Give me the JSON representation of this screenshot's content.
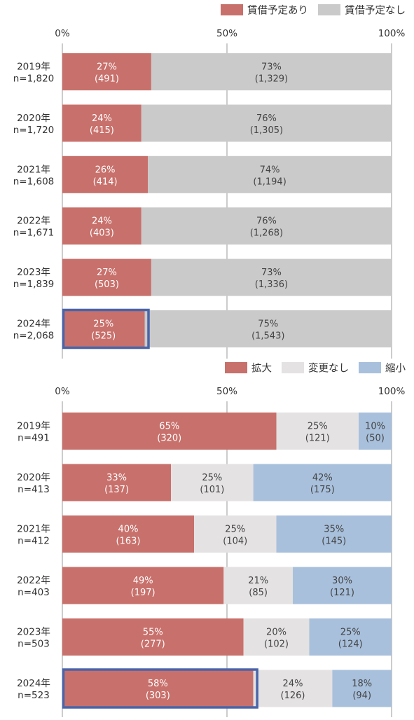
{
  "chart_data": [
    {
      "type": "bar",
      "orientation": "horizontal",
      "stacked": true,
      "percent": true,
      "categories": [
        "2019年\nn=1,820",
        "2020年\nn=1,720",
        "2021年\nn=1,608",
        "2022年\nn=1,671",
        "2023年\nn=1,839",
        "2024年\nn=2,068"
      ],
      "xlim": [
        0,
        100
      ],
      "ticks": [
        "0%",
        "50%",
        "100%"
      ],
      "legend_position": "top-right",
      "highlight": {
        "series": 0,
        "category": 5
      },
      "series": [
        {
          "name": "賃借予定あり",
          "color": "#c8706b",
          "values": [
            27,
            24,
            26,
            24,
            27,
            25
          ],
          "labels": [
            "27%",
            "24%",
            "26%",
            "24%",
            "27%",
            "25%"
          ],
          "counts": [
            "(491)",
            "(415)",
            "(414)",
            "(403)",
            "(503)",
            "(525)"
          ]
        },
        {
          "name": "賃借予定なし",
          "color": "#cacaca",
          "values": [
            73,
            76,
            74,
            76,
            73,
            75
          ],
          "labels": [
            "73%",
            "76%",
            "74%",
            "76%",
            "73%",
            "75%"
          ],
          "counts": [
            "(1,329)",
            "(1,305)",
            "(1,194)",
            "(1,268)",
            "(1,336)",
            "(1,543)"
          ]
        }
      ]
    },
    {
      "type": "bar",
      "orientation": "horizontal",
      "stacked": true,
      "percent": true,
      "categories": [
        "2019年\nn=491",
        "2020年\nn=413",
        "2021年\nn=412",
        "2022年\nn=403",
        "2023年\nn=503",
        "2024年\nn=523"
      ],
      "xlim": [
        0,
        100
      ],
      "ticks": [
        "0%",
        "50%",
        "100%"
      ],
      "legend_position": "top-right",
      "highlight": {
        "series": 0,
        "category": 5
      },
      "series": [
        {
          "name": "拡大",
          "color": "#c8706b",
          "values": [
            65,
            33,
            40,
            49,
            55,
            58
          ],
          "labels": [
            "65%",
            "33%",
            "40%",
            "49%",
            "55%",
            "58%"
          ],
          "counts": [
            "(320)",
            "(137)",
            "(163)",
            "(197)",
            "(277)",
            "(303)"
          ]
        },
        {
          "name": "変更なし",
          "color": "#e4e2e2",
          "values": [
            25,
            25,
            25,
            21,
            20,
            24
          ],
          "labels": [
            "25%",
            "25%",
            "25%",
            "21%",
            "20%",
            "24%"
          ],
          "counts": [
            "(121)",
            "(101)",
            "(104)",
            "(85)",
            "(102)",
            "(126)"
          ]
        },
        {
          "name": "縮小",
          "color": "#a8c0dc",
          "values": [
            10,
            42,
            35,
            30,
            25,
            18
          ],
          "labels": [
            "10%",
            "42%",
            "35%",
            "30%",
            "25%",
            "18%"
          ],
          "counts": [
            "(50)",
            "(175)",
            "(145)",
            "(121)",
            "(124)",
            "(94)"
          ]
        }
      ]
    }
  ]
}
